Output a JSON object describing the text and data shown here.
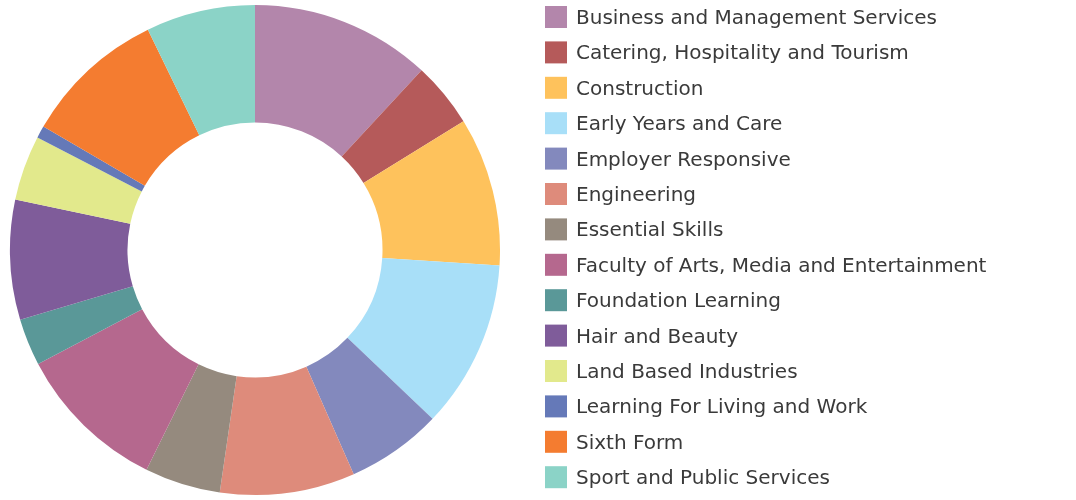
{
  "chart_data": {
    "type": "donut",
    "categories": [
      "Business and Management Services",
      "Catering, Hospitality and Tourism",
      "Construction",
      "Early Years and Care",
      "Employer Responsive",
      "Engineering",
      "Essential Skills",
      "Faculty of Arts, Media and Entertainment",
      "Foundation Learning",
      "Hair and Beauty",
      "Land Based Industries",
      "Learning For Living and Work",
      "Sixth Form",
      "Sport and Public Services"
    ],
    "values": [
      11.9,
      4.3,
      9.8,
      11.1,
      6.3,
      8.9,
      5,
      10,
      3.1,
      7.9,
      4.3,
      0.8,
      9.4,
      7.2
    ],
    "colors": [
      "#b386ab",
      "#b55a5a",
      "#fec25c",
      "#a8dff8",
      "#8389bd",
      "#de8b7b",
      "#958a7e",
      "#b5688e",
      "#5a9898",
      "#7f5c9a",
      "#e2e98c",
      "#6579b8",
      "#f47c30",
      "#8bd3c7"
    ],
    "legend": "right"
  }
}
